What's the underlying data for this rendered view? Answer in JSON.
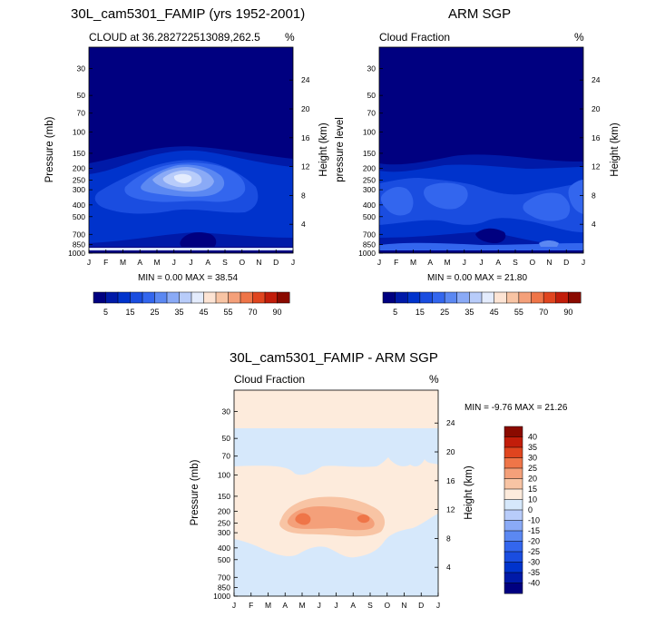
{
  "chart_data": [
    {
      "type": "heatmap",
      "title": "30L_cam5301_FAMIP (yrs 1952-2001)",
      "left_subtitle": "CLOUD at 36.282722513089,262.5",
      "right_subtitle": "%",
      "x_ticks": [
        "J",
        "F",
        "M",
        "A",
        "M",
        "J",
        "J",
        "A",
        "S",
        "O",
        "N",
        "D",
        "J"
      ],
      "pressure_ticks": [
        "30",
        "50",
        "70",
        "100",
        "150",
        "200",
        "250",
        "300",
        "400",
        "500",
        "700",
        "850",
        "1000"
      ],
      "height_ticks": [
        "24",
        "20",
        "16",
        "12",
        "8",
        "4"
      ],
      "ylabel_left": "Pressure (mb)",
      "ylabel_right": "Height (km)",
      "ylim": [
        1000,
        20
      ],
      "stats": "MIN =   0.00 MAX =  38.54",
      "min": 0.0,
      "max": 38.54,
      "colorbar_labels": [
        "5",
        "15",
        "25",
        "35",
        "45",
        "55",
        "70",
        "90"
      ]
    },
    {
      "type": "heatmap",
      "title": "ARM SGP",
      "left_subtitle": "Cloud Fraction",
      "right_subtitle": "%",
      "x_ticks": [
        "J",
        "F",
        "M",
        "A",
        "M",
        "J",
        "J",
        "A",
        "S",
        "O",
        "N",
        "D",
        "J"
      ],
      "pressure_ticks": [
        "30",
        "50",
        "70",
        "100",
        "150",
        "200",
        "250",
        "300",
        "400",
        "500",
        "700",
        "850",
        "1000"
      ],
      "height_ticks": [
        "24",
        "20",
        "16",
        "12",
        "8",
        "4"
      ],
      "ylabel_left": "pressure level",
      "ylabel_right": "Height (km)",
      "ylim": [
        1000,
        20
      ],
      "stats": "MIN =   0.00 MAX =  21.80",
      "min": 0.0,
      "max": 21.8,
      "colorbar_labels": [
        "5",
        "15",
        "25",
        "35",
        "45",
        "55",
        "70",
        "90"
      ]
    },
    {
      "type": "heatmap",
      "title": "30L_cam5301_FAMIP - ARM SGP",
      "left_subtitle": "Cloud Fraction",
      "right_subtitle": "%",
      "x_ticks": [
        "J",
        "F",
        "M",
        "A",
        "M",
        "J",
        "J",
        "A",
        "S",
        "O",
        "N",
        "D",
        "J"
      ],
      "pressure_ticks": [
        "30",
        "50",
        "70",
        "100",
        "150",
        "200",
        "250",
        "300",
        "400",
        "500",
        "700",
        "850",
        "1000"
      ],
      "height_ticks": [
        "24",
        "20",
        "16",
        "12",
        "8",
        "4"
      ],
      "ylabel_left": "Pressure (mb)",
      "ylabel_right": "Height (km)",
      "ylim": [
        1000,
        20
      ],
      "stats": "MIN =  -9.76 MAX =  21.26",
      "min": -9.76,
      "max": 21.26,
      "colorbar_labels": [
        "40",
        "35",
        "30",
        "25",
        "20",
        "15",
        "10",
        "0",
        "-10",
        "-15",
        "-20",
        "-25",
        "-30",
        "-35",
        "-40"
      ]
    }
  ],
  "colors": {
    "abs_palette": [
      "#000080",
      "#001aa8",
      "#0033cc",
      "#1a4de0",
      "#3366ee",
      "#5b88f2",
      "#8aaaf6",
      "#b8ccfa",
      "#e4ecfd",
      "#fde4d4",
      "#f8c4a4",
      "#f4a07a",
      "#ef7548",
      "#e0451f",
      "#c21d0a",
      "#8a0a00"
    ],
    "diff_palette": [
      "#000080",
      "#001aa8",
      "#0033cc",
      "#1a4de0",
      "#3366ee",
      "#5b88f2",
      "#8aaaf6",
      "#b8ccfa",
      "#d6e8fb",
      "#fdebdc",
      "#f8c4a4",
      "#f4a07a",
      "#ef7548",
      "#e0451f",
      "#c21d0a",
      "#8a0a00"
    ]
  }
}
